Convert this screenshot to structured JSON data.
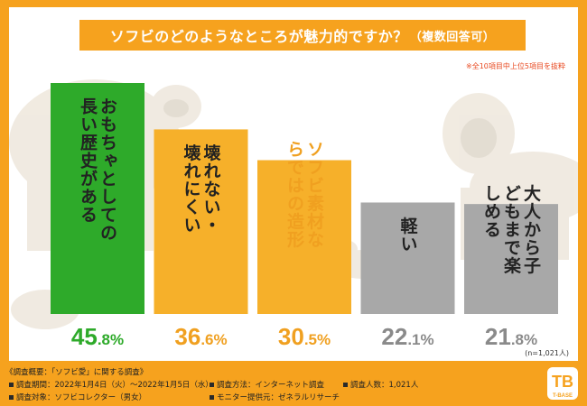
{
  "title": {
    "main": "ソフビのどのようなところが魅力的ですか？",
    "suffix": "（複数回答可）"
  },
  "note": "※全10項目中上位5項目を抜粋",
  "sample_size": "(n=1,021人)",
  "chart_data": {
    "type": "bar",
    "categories": [
      "おもちゃとしての長い歴史がある",
      "壊れない・壊れにくい",
      "ソフビ素材ならではの造形",
      "軽い",
      "大人から子どもまで楽しめる"
    ],
    "values": [
      45.8,
      36.6,
      30.5,
      22.1,
      21.8
    ],
    "value_labels": [
      "45.8%",
      "36.6%",
      "30.5%",
      "22.1%",
      "21.8%"
    ],
    "ylim": [
      0,
      50
    ],
    "colors": [
      "#2eaa2a",
      "#f6b02a",
      "#f6b02a",
      "#a8a8a8",
      "#a8a8a8"
    ],
    "value_colors": [
      "#2eaa2a",
      "#f0a020",
      "#f0a020",
      "#8a8a8a",
      "#8a8a8a"
    ],
    "label_colors": [
      "#222222",
      "#222222",
      "#f0a020",
      "#222222",
      "#222222"
    ]
  },
  "footer": {
    "heading": "《調査概要：「ソフビ愛」に関する調査》",
    "items": [
      "調査期間：2022年1月4日（火）～2022年1月5日（水）",
      "調査方法：インターネット調査",
      "調査人数：1,021人",
      "調査対象：ソフビコレクター（男女）",
      "モニター提供元：ゼネラルリサーチ"
    ]
  },
  "logo_text": "T-BASE"
}
